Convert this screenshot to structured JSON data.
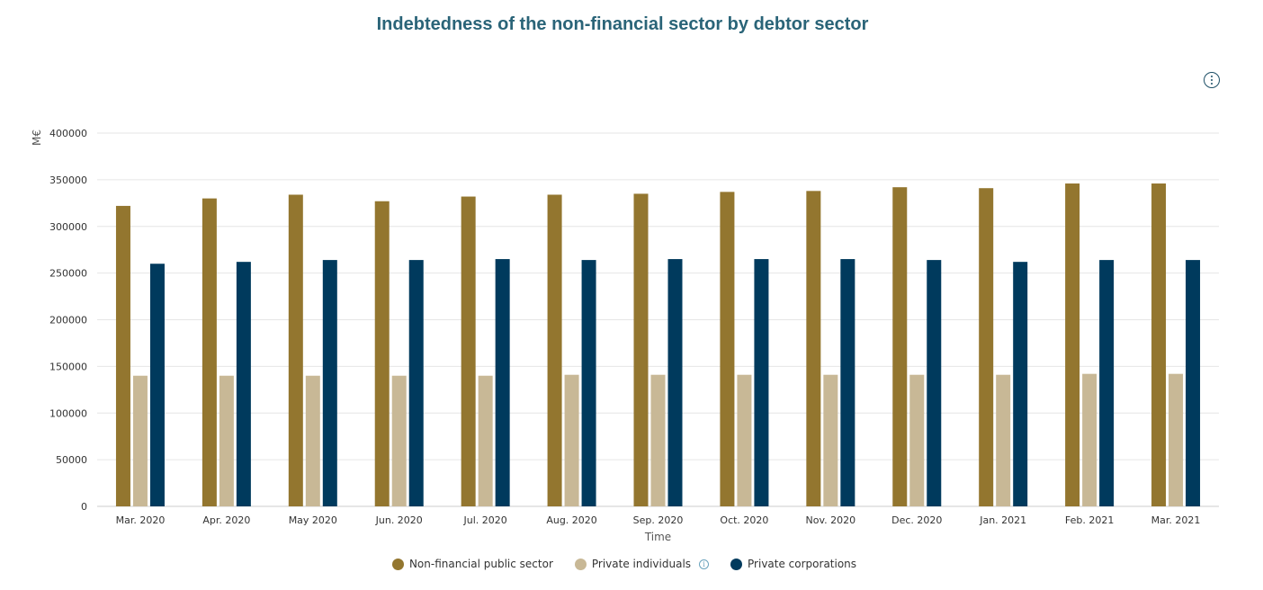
{
  "chart_data": {
    "type": "bar",
    "title": "Indebtedness of the non-financial sector by debtor sector",
    "xlabel": "Time",
    "ylabel": "M€",
    "ylim": [
      0,
      400000
    ],
    "yticks": [
      "0",
      "50000",
      "100000",
      "150000",
      "200000",
      "250000",
      "300000",
      "350000",
      "400000"
    ],
    "grid": true,
    "legend_position": "bottom-center",
    "categories": [
      "Mar. 2020",
      "Apr. 2020",
      "May 2020",
      "Jun. 2020",
      "Jul. 2020",
      "Aug. 2020",
      "Sep. 2020",
      "Oct. 2020",
      "Nov. 2020",
      "Dec. 2020",
      "Jan. 2021",
      "Feb. 2021",
      "Mar. 2021"
    ],
    "series": [
      {
        "name": "Non-financial public sector",
        "color": "#93762f",
        "values": [
          322000,
          330000,
          334000,
          327000,
          332000,
          334000,
          335000,
          337000,
          338000,
          342000,
          341000,
          346000,
          346000
        ]
      },
      {
        "name": "Private individuals",
        "color": "#c8b896",
        "values": [
          140000,
          140000,
          140000,
          140000,
          140000,
          141000,
          141000,
          141000,
          141000,
          141000,
          141000,
          142000,
          142000
        ]
      },
      {
        "name": "Private corporations",
        "color": "#003a5d",
        "values": [
          260000,
          262000,
          264000,
          264000,
          265000,
          264000,
          265000,
          265000,
          265000,
          264000,
          262000,
          264000,
          264000
        ]
      }
    ]
  },
  "ui": {
    "menu_icon": "more-vertical-icon",
    "info_icon": "info-icon"
  }
}
